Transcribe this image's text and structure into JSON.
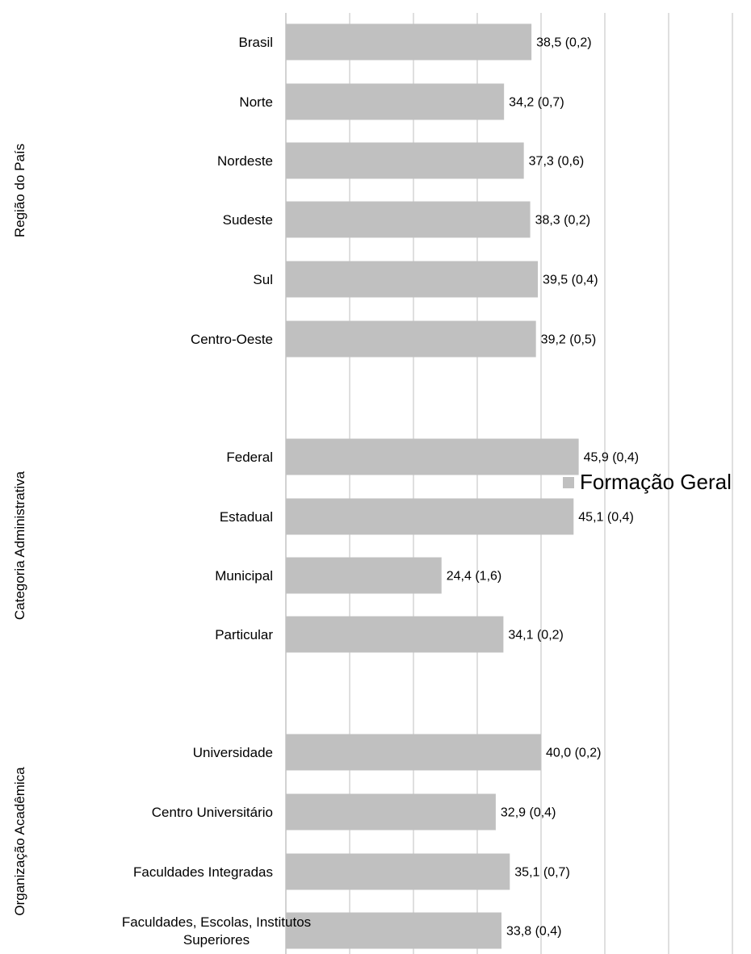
{
  "chart_data": {
    "type": "bar",
    "orientation": "horizontal",
    "series": [
      {
        "name": "Formação Geral",
        "color": "#c0c0c0",
        "values": [
          38.5,
          34.2,
          37.3,
          38.3,
          39.5,
          39.2,
          45.9,
          45.1,
          24.4,
          34.1,
          40.0,
          32.9,
          35.1,
          33.8
        ],
        "errors": [
          0.2,
          0.7,
          0.6,
          0.2,
          0.4,
          0.5,
          0.4,
          0.4,
          1.6,
          0.2,
          0.2,
          0.4,
          0.7,
          0.4
        ],
        "data_labels": [
          "38,5 (0,2)",
          "34,2 (0,7)",
          "37,3 (0,6)",
          "38,3 (0,2)",
          "39,5 (0,4)",
          "39,2 (0,5)",
          "45,9 (0,4)",
          "45,1 (0,4)",
          "24,4 (1,6)",
          "34,1 (0,2)",
          "40,0 (0,2)",
          "32,9 (0,4)",
          "35,1 (0,7)",
          "33,8 (0,4)"
        ]
      }
    ],
    "categories": [
      [
        "Brasil"
      ],
      [
        "Norte"
      ],
      [
        "Nordeste"
      ],
      [
        "Sudeste"
      ],
      [
        "Sul"
      ],
      [
        "Centro-Oeste"
      ],
      [
        "Federal"
      ],
      [
        "Estadual"
      ],
      [
        "Municipal"
      ],
      [
        "Particular"
      ],
      [
        "Universidade"
      ],
      [
        "Centro Universitário"
      ],
      [
        "Faculdades Integradas"
      ],
      [
        "Faculdades, Escolas, Institutos",
        "Superiores"
      ]
    ],
    "groups": [
      {
        "label": "Região do País",
        "members": [
          0,
          1,
          2,
          3,
          4,
          5
        ]
      },
      {
        "label": "Categoria Administrativa",
        "members": [
          6,
          7,
          8,
          9
        ]
      },
      {
        "label": "Organização Acadêmica",
        "members": [
          10,
          11,
          12,
          13
        ]
      }
    ],
    "xlim": [
      0,
      100
    ],
    "x_gridline_step": 10,
    "grid": true,
    "legend": "right",
    "title": "",
    "xlabel": "",
    "ylabel": ""
  },
  "legend": {
    "label": "Formação Geral"
  }
}
